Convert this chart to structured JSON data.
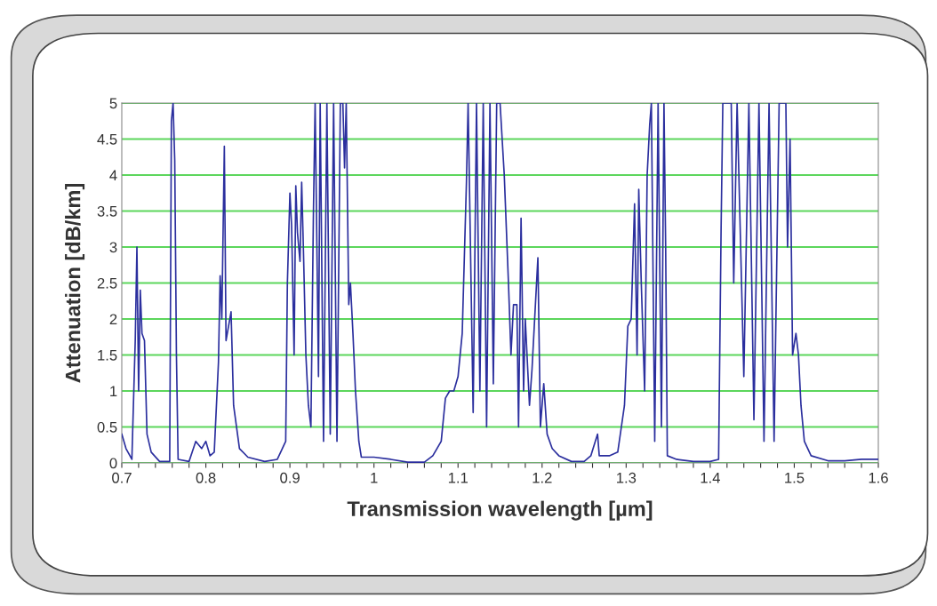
{
  "chart_data": {
    "type": "line",
    "xlabel": "Transmission wavelength [µm]",
    "ylabel": "Attenuation [dB/km]",
    "x": [
      0.7,
      0.705,
      0.712,
      0.716,
      0.718,
      0.72,
      0.722,
      0.724,
      0.727,
      0.73,
      0.735,
      0.745,
      0.757,
      0.759,
      0.761,
      0.763,
      0.765,
      0.767,
      0.78,
      0.788,
      0.795,
      0.8,
      0.805,
      0.81,
      0.815,
      0.817,
      0.819,
      0.822,
      0.824,
      0.827,
      0.83,
      0.833,
      0.84,
      0.85,
      0.87,
      0.885,
      0.895,
      0.897,
      0.9,
      0.902,
      0.905,
      0.907,
      0.909,
      0.912,
      0.914,
      0.916,
      0.919,
      0.922,
      0.925,
      0.928,
      0.93,
      0.934,
      0.936,
      0.94,
      0.944,
      0.948,
      0.952,
      0.956,
      0.96,
      0.963,
      0.965,
      0.967,
      0.97,
      0.972,
      0.975,
      0.978,
      0.982,
      0.985,
      1.0,
      1.02,
      1.04,
      1.06,
      1.07,
      1.08,
      1.085,
      1.09,
      1.095,
      1.1,
      1.105,
      1.11,
      1.112,
      1.118,
      1.122,
      1.126,
      1.13,
      1.134,
      1.138,
      1.142,
      1.146,
      1.15,
      1.155,
      1.16,
      1.163,
      1.166,
      1.17,
      1.172,
      1.175,
      1.178,
      1.18,
      1.185,
      1.188,
      1.195,
      1.198,
      1.202,
      1.206,
      1.212,
      1.22,
      1.235,
      1.25,
      1.258,
      1.266,
      1.268,
      1.28,
      1.29,
      1.298,
      1.302,
      1.306,
      1.31,
      1.313,
      1.315,
      1.318,
      1.322,
      1.325,
      1.328,
      1.33,
      1.334,
      1.338,
      1.342,
      1.345,
      1.347,
      1.349,
      1.36,
      1.38,
      1.4,
      1.41,
      1.413,
      1.415,
      1.425,
      1.428,
      1.432,
      1.44,
      1.446,
      1.452,
      1.458,
      1.464,
      1.47,
      1.476,
      1.482,
      1.49,
      1.492,
      1.495,
      1.498,
      1.502,
      1.505,
      1.508,
      1.512,
      1.52,
      1.54,
      1.56,
      1.58,
      1.6
    ],
    "values": [
      0.4,
      0.2,
      0.05,
      1.7,
      3.0,
      1.0,
      2.4,
      1.8,
      1.7,
      0.4,
      0.15,
      0.02,
      0.02,
      4.75,
      5,
      4.2,
      1.5,
      0.05,
      0.02,
      0.3,
      0.2,
      0.3,
      0.1,
      0.15,
      1.4,
      2.6,
      2.0,
      4.4,
      1.7,
      1.9,
      2.1,
      0.8,
      0.2,
      0.08,
      0.02,
      0.05,
      0.3,
      2.5,
      3.75,
      3.3,
      1.5,
      3.85,
      3.2,
      2.8,
      3.9,
      3.0,
      1.5,
      0.8,
      0.5,
      3.5,
      5,
      1.2,
      5,
      0.3,
      5,
      0.4,
      5,
      0.3,
      5,
      5,
      4.1,
      5,
      2.2,
      2.5,
      1.8,
      1.0,
      0.3,
      0.08,
      0.08,
      0.05,
      0.01,
      0.01,
      0.1,
      0.3,
      0.9,
      1.0,
      1.0,
      1.2,
      1.8,
      3.9,
      5,
      0.7,
      5,
      1.0,
      5,
      0.5,
      5,
      1.1,
      5,
      5,
      4.0,
      2.5,
      1.5,
      2.2,
      2.2,
      0.5,
      3.4,
      1.0,
      2.0,
      0.8,
      1.3,
      2.85,
      0.5,
      1.1,
      0.4,
      0.2,
      0.1,
      0.02,
      0.02,
      0.1,
      0.4,
      0.1,
      0.1,
      0.15,
      0.8,
      1.9,
      2.0,
      3.6,
      1.5,
      3.8,
      2.5,
      1.0,
      4.0,
      4.7,
      5,
      0.3,
      5,
      0.5,
      5,
      3.0,
      0.1,
      0.05,
      0.02,
      0.02,
      0.05,
      3.3,
      5,
      5,
      2.5,
      5,
      1.2,
      5,
      0.6,
      5,
      0.3,
      5,
      0.3,
      5,
      5,
      3.0,
      4.5,
      1.5,
      1.8,
      1.5,
      0.8,
      0.3,
      0.1,
      0.03,
      0.03,
      0.05,
      0.05
    ],
    "color": "#2b2f9e",
    "line_style": "solid",
    "marker": "none",
    "xlim": [
      0.7,
      1.6
    ],
    "ylim": [
      0,
      5
    ],
    "xticks": [
      0.7,
      {
        "value": 0.72,
        "label": null
      },
      {
        "value": 0.74,
        "label": null
      },
      {
        "value": 0.76,
        "label": null
      },
      {
        "value": 0.78,
        "label": null
      },
      0.8,
      {
        "value": 0.82,
        "label": null
      },
      {
        "value": 0.84,
        "label": null
      },
      {
        "value": 0.86,
        "label": null
      },
      {
        "value": 0.88,
        "label": null
      },
      0.9,
      {
        "value": 0.92,
        "label": null
      },
      {
        "value": 0.94,
        "label": null
      },
      {
        "value": 0.96,
        "label": null
      },
      {
        "value": 0.98,
        "label": null
      },
      1,
      {
        "value": 1.02,
        "label": null
      },
      {
        "value": 1.04,
        "label": null
      },
      {
        "value": 1.06,
        "label": null
      },
      {
        "value": 1.08,
        "label": null
      },
      1.1,
      {
        "value": 1.12,
        "label": null
      },
      {
        "value": 1.14,
        "label": null
      },
      {
        "value": 1.16,
        "label": null
      },
      {
        "value": 1.18,
        "label": null
      },
      1.2,
      {
        "value": 1.22,
        "label": null
      },
      {
        "value": 1.24,
        "label": null
      },
      {
        "value": 1.26,
        "label": null
      },
      {
        "value": 1.28,
        "label": null
      },
      1.3,
      {
        "value": 1.32,
        "label": null
      },
      {
        "value": 1.34,
        "label": null
      },
      {
        "value": 1.36,
        "label": null
      },
      {
        "value": 1.38,
        "label": null
      },
      1.4,
      {
        "value": 1.42,
        "label": null
      },
      {
        "value": 1.44,
        "label": null
      },
      {
        "value": 1.46,
        "label": null
      },
      {
        "value": 1.48,
        "label": null
      },
      1.5,
      {
        "value": 1.52,
        "label": null
      },
      {
        "value": 1.54,
        "label": null
      },
      {
        "value": 1.56,
        "label": null
      },
      {
        "value": 1.58,
        "label": null
      },
      1.6
    ],
    "yticks": [
      0,
      0.5,
      1,
      1.5,
      2,
      2.5,
      3,
      3.5,
      4,
      4.5,
      5
    ],
    "grid": "y",
    "legend": false
  }
}
